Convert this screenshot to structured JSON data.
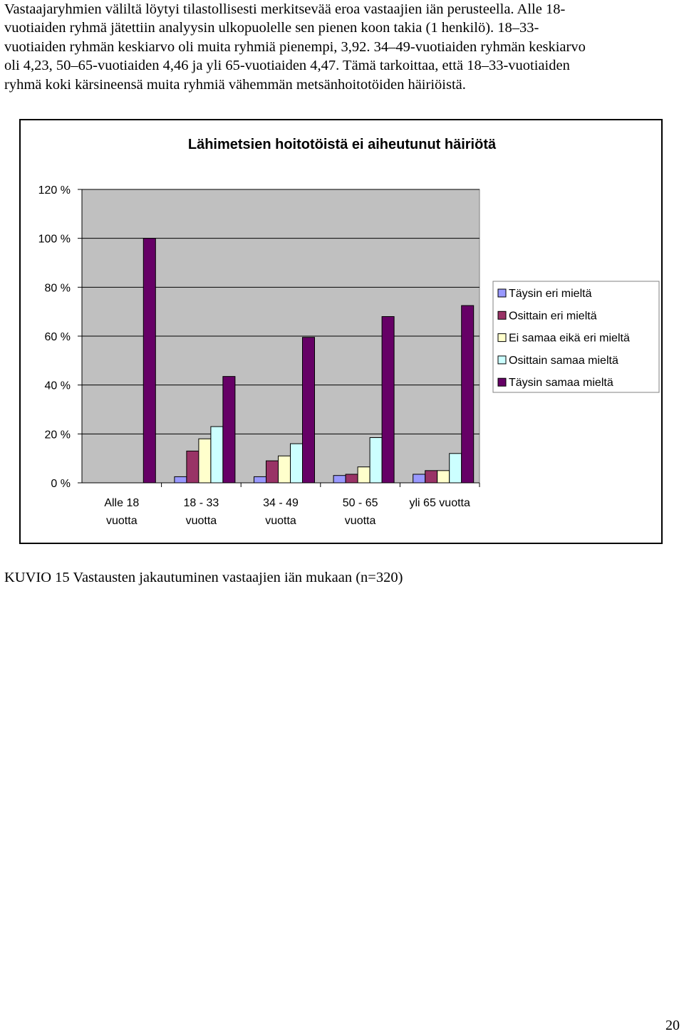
{
  "paragraph": {
    "lines": [
      "Vastaajaryhmien väliltä löytyi tilastollisesti merkitsevää eroa vastaajien iän perusteella. Alle 18-",
      "vuotiaiden ryhmä jätettiin analyysin ulkopuolelle sen pienen koon takia (1 henkilö). 18–33-",
      "vuotiaiden ryhmän keskiarvo oli muita ryhmiä pienempi, 3,92. 34–49-vuotiaiden ryhmän keskiarvo",
      "oli 4,23, 50–65-vuotiaiden 4,46 ja yli 65-vuotiaiden 4,47. Tämä tarkoittaa, että 18–33-vuotiaiden",
      "ryhmä koki kärsineensä muita ryhmiä vähemmän metsänhoitotöiden häiriöistä."
    ]
  },
  "chart_data": {
    "type": "bar",
    "title": "Lähimetsien hoitotöistä ei aiheutunut häiriötä",
    "xlabel": "",
    "ylabel": "",
    "ylim": [
      0,
      120
    ],
    "yticks": [
      "0 %",
      "20 %",
      "40 %",
      "60 %",
      "80 %",
      "100 %",
      "120 %"
    ],
    "ytick_values": [
      0,
      20,
      40,
      60,
      80,
      100,
      120
    ],
    "categories": [
      [
        "Alle 18",
        "vuotta"
      ],
      [
        "18 - 33",
        "vuotta"
      ],
      [
        "34 - 49",
        "vuotta"
      ],
      [
        "50 - 65",
        "vuotta"
      ],
      [
        "yli 65 vuotta"
      ]
    ],
    "series": [
      {
        "name": "Täysin eri mieltä",
        "color": "#9999ff",
        "values": [
          0,
          2.5,
          2.5,
          3,
          3.5
        ]
      },
      {
        "name": "Osittain eri mieltä",
        "color": "#993366",
        "values": [
          0,
          13,
          9,
          3.5,
          5
        ]
      },
      {
        "name": "Ei samaa eikä eri mieltä",
        "color": "#ffffcc",
        "values": [
          0,
          18,
          11,
          6.5,
          5
        ]
      },
      {
        "name": "Osittain samaa mieltä",
        "color": "#ccffff",
        "values": [
          0,
          23,
          16,
          18.5,
          12
        ]
      },
      {
        "name": "Täysin samaa mieltä",
        "color": "#660066",
        "values": [
          100,
          43.5,
          59.5,
          68,
          72.5
        ]
      }
    ],
    "grid": true,
    "plot_background": "#c0c0c0",
    "legend_position": "right"
  },
  "caption": "KUVIO 15 Vastausten jakautuminen vastaajien iän mukaan (n=320)",
  "page_number": "20"
}
